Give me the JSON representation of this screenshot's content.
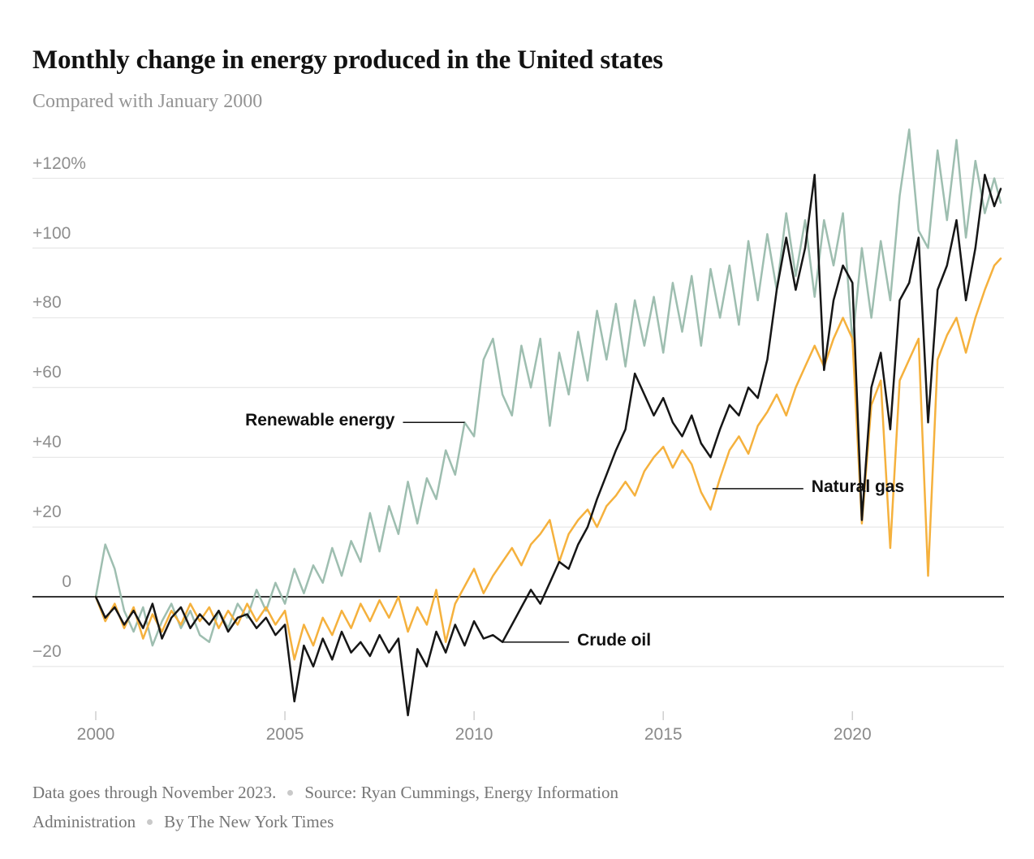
{
  "header": {
    "title": "Monthly change in energy produced in the United states",
    "subtitle": "Compared with January 2000"
  },
  "footer": {
    "note": "Data goes through November 2023.",
    "source_line1": "Source: Ryan Cummings, Energy Information",
    "source_line2": "Administration",
    "byline": "By The New York Times"
  },
  "chart_data": {
    "type": "line",
    "title": "Monthly change in energy produced in the United states",
    "subtitle": "Compared with January 2000",
    "unit": "percent change vs January 2000",
    "grid": true,
    "xlim": [
      2000,
      2023.92
    ],
    "ylim": [
      -40,
      140
    ],
    "x_ticks": [
      2000,
      2005,
      2010,
      2015,
      2020
    ],
    "x_tick_labels": [
      "2000",
      "2005",
      "2010",
      "2015",
      "2020"
    ],
    "y_ticks": [
      120,
      100,
      80,
      60,
      40,
      20,
      0,
      -20
    ],
    "y_tick_labels": [
      "+120%",
      "+100",
      "+80",
      "+60",
      "+40",
      "+20",
      "0",
      "−20"
    ],
    "x": [
      2000,
      2000.25,
      2000.5,
      2000.75,
      2001,
      2001.25,
      2001.5,
      2001.75,
      2002,
      2002.25,
      2002.5,
      2002.75,
      2003,
      2003.25,
      2003.5,
      2003.75,
      2004,
      2004.25,
      2004.5,
      2004.75,
      2005,
      2005.25,
      2005.5,
      2005.75,
      2006,
      2006.25,
      2006.5,
      2006.75,
      2007,
      2007.25,
      2007.5,
      2007.75,
      2008,
      2008.25,
      2008.5,
      2008.75,
      2009,
      2009.25,
      2009.5,
      2009.75,
      2010,
      2010.25,
      2010.5,
      2010.75,
      2011,
      2011.25,
      2011.5,
      2011.75,
      2012,
      2012.25,
      2012.5,
      2012.75,
      2013,
      2013.25,
      2013.5,
      2013.75,
      2014,
      2014.25,
      2014.5,
      2014.75,
      2015,
      2015.25,
      2015.5,
      2015.75,
      2016,
      2016.25,
      2016.5,
      2016.75,
      2017,
      2017.25,
      2017.5,
      2017.75,
      2018,
      2018.25,
      2018.5,
      2018.75,
      2019,
      2019.25,
      2019.5,
      2019.75,
      2020,
      2020.25,
      2020.5,
      2020.75,
      2021,
      2021.25,
      2021.5,
      2021.75,
      2022,
      2022.25,
      2022.5,
      2022.75,
      2023,
      2023.25,
      2023.5,
      2023.75,
      2023.92
    ],
    "series": [
      {
        "name": "Renewable energy",
        "color": "#9ebeb0",
        "values": [
          0,
          15,
          8,
          -4,
          -10,
          -3,
          -14,
          -7,
          -2,
          -9,
          -4,
          -11,
          -13,
          -4,
          -9,
          -2,
          -6,
          2,
          -4,
          4,
          -2,
          8,
          1,
          9,
          4,
          14,
          6,
          16,
          10,
          24,
          13,
          26,
          18,
          33,
          21,
          34,
          28,
          42,
          35,
          50,
          46,
          68,
          74,
          58,
          52,
          72,
          60,
          74,
          49,
          70,
          58,
          76,
          62,
          82,
          68,
          84,
          66,
          85,
          72,
          86,
          70,
          90,
          76,
          92,
          72,
          94,
          80,
          95,
          78,
          102,
          85,
          104,
          88,
          110,
          92,
          108,
          86,
          108,
          95,
          110,
          73,
          100,
          80,
          102,
          85,
          115,
          134,
          105,
          100,
          128,
          108,
          131,
          103,
          125,
          110,
          120,
          113
        ]
      },
      {
        "name": "Natural gas",
        "color": "#f5b13d",
        "values": [
          0,
          -7,
          -2,
          -9,
          -3,
          -12,
          -5,
          -10,
          -4,
          -8,
          -2,
          -7,
          -3,
          -9,
          -4,
          -8,
          -2,
          -7,
          -3,
          -8,
          -4,
          -18,
          -8,
          -14,
          -6,
          -11,
          -4,
          -9,
          -2,
          -7,
          -1,
          -6,
          0,
          -10,
          -3,
          -8,
          2,
          -13,
          -2,
          3,
          8,
          1,
          6,
          10,
          14,
          9,
          15,
          18,
          22,
          10,
          18,
          22,
          25,
          20,
          26,
          29,
          33,
          29,
          36,
          40,
          43,
          37,
          42,
          38,
          30,
          25,
          34,
          42,
          46,
          41,
          49,
          53,
          58,
          52,
          60,
          66,
          72,
          66,
          74,
          80,
          74,
          21,
          55,
          62,
          14,
          62,
          68,
          74,
          6,
          68,
          75,
          80,
          70,
          80,
          88,
          95,
          97
        ]
      },
      {
        "name": "Crude oil",
        "color": "#161616",
        "values": [
          0,
          -6,
          -3,
          -8,
          -4,
          -9,
          -2,
          -12,
          -6,
          -3,
          -9,
          -5,
          -8,
          -4,
          -10,
          -6,
          -5,
          -9,
          -6,
          -11,
          -8,
          -30,
          -14,
          -20,
          -12,
          -18,
          -10,
          -16,
          -13,
          -17,
          -11,
          -16,
          -12,
          -34,
          -15,
          -20,
          -10,
          -16,
          -8,
          -14,
          -7,
          -12,
          -11,
          -13,
          -8,
          -3,
          2,
          -2,
          4,
          10,
          8,
          15,
          20,
          28,
          35,
          42,
          48,
          64,
          58,
          52,
          57,
          50,
          46,
          52,
          44,
          40,
          48,
          55,
          52,
          60,
          57,
          68,
          88,
          103,
          88,
          100,
          121,
          65,
          85,
          95,
          90,
          22,
          60,
          70,
          48,
          85,
          90,
          103,
          50,
          88,
          95,
          108,
          85,
          100,
          121,
          112,
          117
        ]
      }
    ],
    "annotations": [
      {
        "text": "Renewable energy",
        "year": 2009.75,
        "value": 50,
        "side": "left",
        "line_len": 76
      },
      {
        "text": "Natural gas",
        "year": 2016.3,
        "value": 31,
        "side": "right",
        "line_len": 112
      },
      {
        "text": "Crude oil",
        "year": 2010.75,
        "value": -13,
        "side": "right",
        "line_len": 82
      }
    ]
  }
}
